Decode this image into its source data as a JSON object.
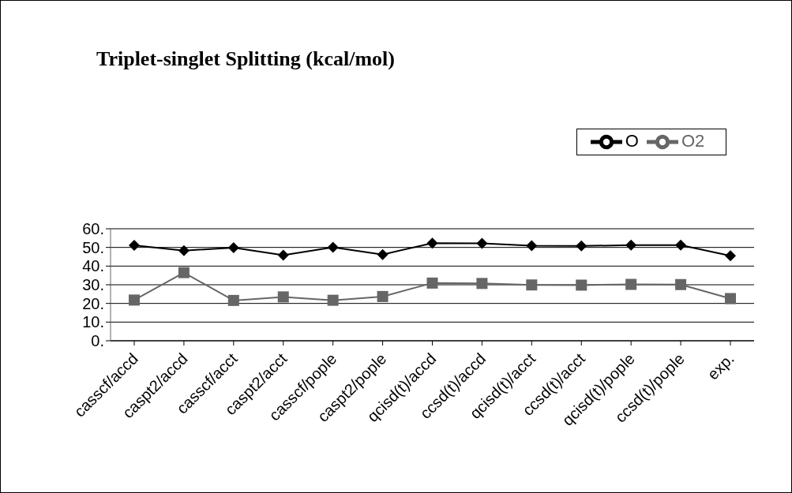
{
  "chart_data": {
    "type": "line",
    "title": "Triplet-singlet Splitting (kcal/mol)",
    "categories": [
      "casscf/accd",
      "caspt2/accd",
      "casscf/acct",
      "caspt2/acct",
      "casscf/pople",
      "caspt2/pople",
      "qcisd(t)/accd",
      "ccsd(t)/accd",
      "qcisd(t)/acct",
      "ccsd(t)/acct",
      "qcisd(t)/pople",
      "ccsd(t)/pople",
      "exp."
    ],
    "series": [
      {
        "name": "O",
        "color": "#000000",
        "marker": "diamond",
        "values": [
          51.1,
          48.3,
          49.9,
          45.8,
          50.1,
          46.2,
          52.3,
          52.2,
          50.9,
          50.8,
          51.2,
          51.2,
          45.5
        ]
      },
      {
        "name": "O2",
        "color": "#666666",
        "marker": "square",
        "values": [
          21.8,
          36.5,
          21.6,
          23.5,
          21.7,
          23.7,
          30.9,
          30.7,
          29.9,
          29.8,
          30.2,
          30.1,
          22.6
        ]
      }
    ],
    "ylim": [
      0,
      60
    ],
    "yticks": [
      {
        "value": 0,
        "label": "0."
      },
      {
        "value": 10,
        "label": "10."
      },
      {
        "value": 20,
        "label": "20."
      },
      {
        "value": 30,
        "label": "30."
      },
      {
        "value": 40,
        "label": "40."
      },
      {
        "value": 50,
        "label": "50."
      },
      {
        "value": 60,
        "label": "60."
      }
    ],
    "grid": "y",
    "legend": "top right"
  }
}
